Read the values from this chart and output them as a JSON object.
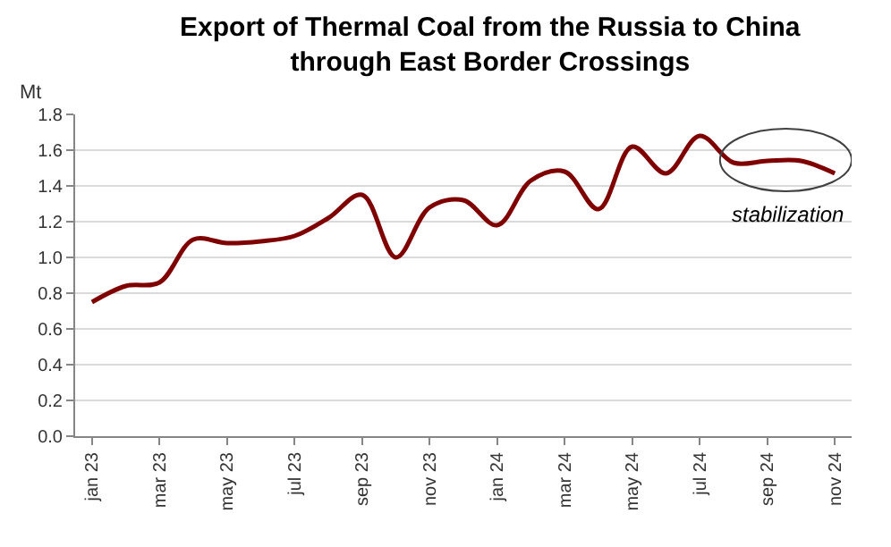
{
  "chart_data": {
    "type": "line",
    "title": "Export of Thermal Coal from the Russia to China\nthrough East Border Crossings",
    "ylabel": "Mt",
    "categories": [
      "jan 23",
      null,
      "mar 23",
      null,
      "may 23",
      null,
      "jul 23",
      null,
      "sep 23",
      null,
      "nov 23",
      null,
      "jan 24",
      null,
      "mar 24",
      null,
      "may 24",
      null,
      "jul 24",
      null,
      "sep 24",
      null,
      "nov 24"
    ],
    "series": [
      {
        "color": "#7f0000",
        "values": [
          0.75,
          0.84,
          0.86,
          1.1,
          1.08,
          1.09,
          1.12,
          1.22,
          1.35,
          1.0,
          1.28,
          1.32,
          1.18,
          1.43,
          1.48,
          1.27,
          1.62,
          1.47,
          1.68,
          1.53,
          1.54,
          1.54,
          1.47
        ]
      }
    ],
    "ylim": [
      0,
      1.8
    ],
    "yticks": [
      {
        "value": 0,
        "label": "0.0"
      },
      {
        "value": 0.2,
        "label": "0.2"
      },
      {
        "value": 0.4,
        "label": "0.4"
      },
      {
        "value": 0.6,
        "label": "0.6"
      },
      {
        "value": 0.8,
        "label": "0.8"
      },
      {
        "value": 1,
        "label": "1.0"
      },
      {
        "value": 1.2,
        "label": "1.2"
      },
      {
        "value": 1.4,
        "label": "1.4"
      },
      {
        "value": 1.6,
        "label": "1.6"
      },
      {
        "value": 1.8,
        "label": "1.8"
      }
    ],
    "grid": "y",
    "marker": "none",
    "line_style": "solid",
    "annotations": [
      "stabilization"
    ]
  }
}
